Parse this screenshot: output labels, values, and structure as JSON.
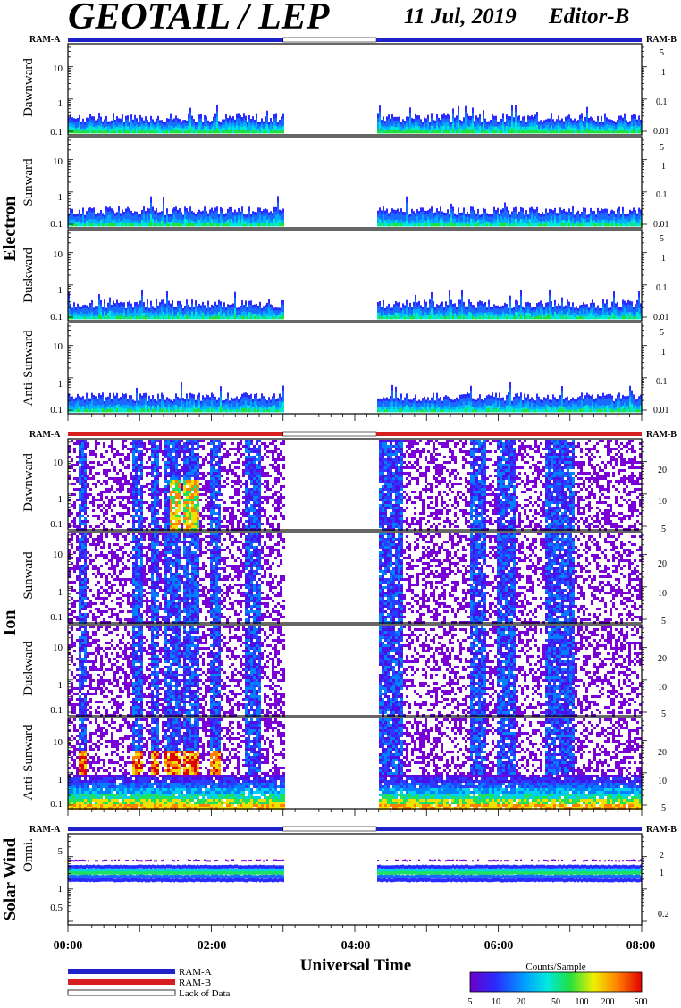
{
  "header": {
    "title": "GEOTAIL / LEP",
    "date": "11 Jul, 2019",
    "editor": "Editor-B"
  },
  "ram_labels": {
    "a": "RAM-A",
    "b": "RAM-B"
  },
  "colors": {
    "ram_a": "#1f22c8",
    "ram_b": "#d81f1f",
    "lack": "#ffffff"
  },
  "chart_data": {
    "type": "heatmap",
    "x": {
      "ticks": [
        "00:00",
        "02:00",
        "04:00",
        "06:00",
        "08:00"
      ],
      "range_hours": [
        0,
        8
      ],
      "label": "Universal Time"
    },
    "data_gap_hours": [
      3.0,
      4.3
    ],
    "groups": [
      {
        "name": "Electron",
        "ram_bar": "ram_a",
        "panels": [
          {
            "label": "Dawnward",
            "left_ticks": [
              "10",
              "1",
              "0.1"
            ],
            "right_ticks": [
              "5",
              "1",
              "0.1",
              "0.01"
            ]
          },
          {
            "label": "Sunward",
            "left_ticks": [
              "10",
              "1",
              "0.1"
            ],
            "right_ticks": [
              "5",
              "1",
              "0.1",
              "0.01"
            ]
          },
          {
            "label": "Duskward",
            "left_ticks": [
              "10",
              "1",
              "0.1"
            ],
            "right_ticks": [
              "5",
              "1",
              "0.1",
              "0.01"
            ]
          },
          {
            "label": "Anti-Sunward",
            "left_ticks": [
              "10",
              "1",
              "0.1"
            ],
            "right_ticks": [
              "5",
              "1",
              "0.1",
              "0.01"
            ]
          }
        ]
      },
      {
        "name": "Ion",
        "ram_bar": "ram_b",
        "panels": [
          {
            "label": "Dawnward",
            "left_ticks": [
              "10",
              "1",
              "0.1"
            ],
            "right_ticks": [
              "20",
              "10",
              "5"
            ]
          },
          {
            "label": "Sunward",
            "left_ticks": [
              "10",
              "1",
              "0.1"
            ],
            "right_ticks": [
              "20",
              "10",
              "5"
            ]
          },
          {
            "label": "Duskward",
            "left_ticks": [
              "10",
              "1",
              "0.1"
            ],
            "right_ticks": [
              "20",
              "10",
              "5"
            ]
          },
          {
            "label": "Anti-Sunward",
            "left_ticks": [
              "10",
              "1",
              "0.1"
            ],
            "right_ticks": [
              "20",
              "10",
              "5"
            ]
          }
        ]
      },
      {
        "name": "Solar Wind",
        "ram_bar": "ram_a",
        "panels": [
          {
            "label": "Omni.",
            "left_ticks": [
              "5",
              "1",
              "0.5"
            ],
            "right_ticks": [
              "2",
              "1",
              "0.2"
            ]
          }
        ]
      }
    ],
    "colorbar": {
      "title": "Counts/Sample",
      "ticks": [
        "5",
        "10",
        "20",
        "50",
        "100",
        "200",
        "500"
      ]
    }
  },
  "legend": [
    {
      "label": "RAM-A",
      "color": "#1f22c8"
    },
    {
      "label": "RAM-B",
      "color": "#d81f1f"
    },
    {
      "label": "Lack of Data",
      "color": "#ffffff"
    }
  ]
}
